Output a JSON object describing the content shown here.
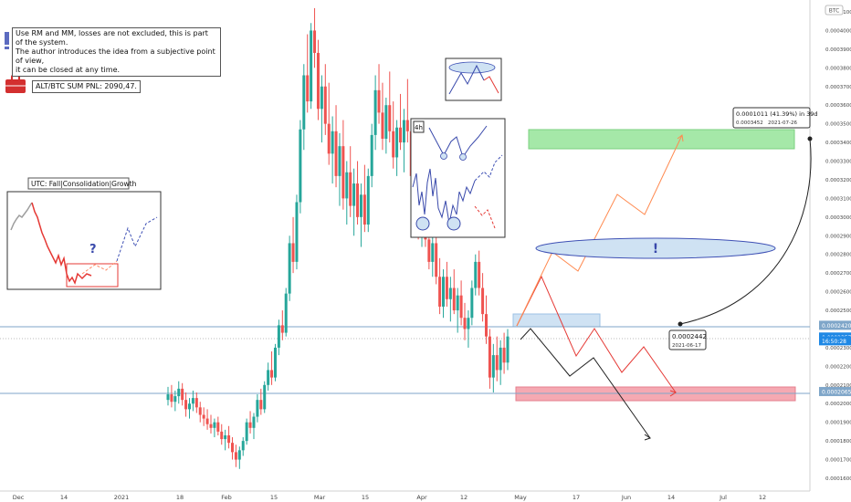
{
  "chart_data": {
    "type": "candlestick",
    "symbol_badge": "BTC",
    "y_ticks": [
      "0.0004100",
      "0.0004000",
      "0.0003900",
      "0.0003800",
      "0.0003700",
      "0.0003600",
      "0.0003500",
      "0.0003400",
      "0.0003300",
      "0.0003200",
      "0.0003100",
      "0.0003000",
      "0.0002900",
      "0.0002800",
      "0.0002700",
      "0.0002600",
      "0.0002500",
      "0.0002300",
      "0.0002200",
      "0.0002100",
      "0.0002000",
      "0.0001900",
      "0.0001800",
      "0.0001700",
      "0.0001600"
    ],
    "y_tick_values": [
      0.00041,
      0.0004,
      0.00039,
      0.00038,
      0.00037,
      0.00036,
      0.00035,
      0.00034,
      0.00033,
      0.00032,
      0.00031,
      0.0003,
      0.00029,
      0.00028,
      0.00027,
      0.00026,
      0.00025,
      0.00023,
      0.00022,
      0.00021,
      0.0002,
      0.00019,
      0.00018,
      0.00017,
      0.00016
    ],
    "x_ticks": [
      "Dec",
      "14",
      "2021",
      "18",
      "Feb",
      "15",
      "Mar",
      "15",
      "Apr",
      "12",
      "May",
      "17",
      "Jun",
      "14",
      "Jul",
      "12"
    ],
    "ylim": [
      0.000155,
      0.000415
    ],
    "price_labels": [
      {
        "text": "0.0002420",
        "value": 0.000242,
        "color": "#7fa6c9"
      },
      {
        "text": "0.0002357",
        "value": 0.0002357,
        "color": "#1e88e5"
      },
      {
        "text": "16:50:28",
        "value": 0.0002337,
        "color": "#1e88e5"
      },
      {
        "text": "0.0002065",
        "value": 0.0002065,
        "color": "#7fa6c9"
      }
    ],
    "horizontal_levels": [
      0.000242,
      0.0002065
    ],
    "candles": [
      [
        0.000202,
        0.000209,
        0.000199,
        0.000205
      ],
      [
        0.000205,
        0.00021,
        0.000198,
        0.000201
      ],
      [
        0.000201,
        0.000207,
        0.000196,
        0.000204
      ],
      [
        0.000204,
        0.000212,
        0.0002,
        0.000208
      ],
      [
        0.000208,
        0.000211,
        0.000199,
        0.000202
      ],
      [
        0.000202,
        0.000206,
        0.000193,
        0.000197
      ],
      [
        0.000197,
        0.000203,
        0.000192,
        0.0002
      ],
      [
        0.0002,
        0.000207,
        0.000196,
        0.000203
      ],
      [
        0.000203,
        0.000206,
        0.000195,
        0.000198
      ],
      [
        0.000198,
        0.000201,
        0.00019,
        0.000194
      ],
      [
        0.000194,
        0.000198,
        0.000188,
        0.000192
      ],
      [
        0.000192,
        0.000197,
        0.000186,
        0.000189
      ],
      [
        0.000189,
        0.000194,
        0.000184,
        0.000187
      ],
      [
        0.000187,
        0.000192,
        0.000182,
        0.00019
      ],
      [
        0.00019,
        0.000193,
        0.000183,
        0.000185
      ],
      [
        0.000185,
        0.000189,
        0.000178,
        0.000181
      ],
      [
        0.000181,
        0.000186,
        0.000175,
        0.000183
      ],
      [
        0.000183,
        0.000188,
        0.000176,
        0.000179
      ],
      [
        0.000179,
        0.000182,
        0.00017,
        0.000174
      ],
      [
        0.000174,
        0.000178,
        0.000166,
        0.00017
      ],
      [
        0.00017,
        0.000177,
        0.000165,
        0.000175
      ],
      [
        0.000175,
        0.000182,
        0.000172,
        0.00018
      ],
      [
        0.00018,
        0.000192,
        0.000178,
        0.00019
      ],
      [
        0.00019,
        0.000196,
        0.000184,
        0.000187
      ],
      [
        0.000187,
        0.000195,
        0.000181,
        0.000193
      ],
      [
        0.000193,
        0.000205,
        0.00019,
        0.000202
      ],
      [
        0.000202,
        0.000208,
        0.000194,
        0.000197
      ],
      [
        0.000197,
        0.000212,
        0.000195,
        0.00021
      ],
      [
        0.00021,
        0.000222,
        0.000207,
        0.000218
      ],
      [
        0.000218,
        0.000228,
        0.00021,
        0.000214
      ],
      [
        0.000214,
        0.000232,
        0.000212,
        0.00023
      ],
      [
        0.00023,
        0.000245,
        0.000226,
        0.000242
      ],
      [
        0.000242,
        0.00025,
        0.000234,
        0.000238
      ],
      [
        0.000238,
        0.000262,
        0.000236,
        0.000259
      ],
      [
        0.000259,
        0.00029,
        0.000255,
        0.000286
      ],
      [
        0.000286,
        0.0003,
        0.00027,
        0.000276
      ],
      [
        0.000276,
        0.000312,
        0.000272,
        0.000308
      ],
      [
        0.000308,
        0.000352,
        0.000302,
        0.000347
      ],
      [
        0.000347,
        0.000382,
        0.000336,
        0.000376
      ],
      [
        0.000376,
        0.000398,
        0.000356,
        0.000362
      ],
      [
        0.000362,
        0.000404,
        0.000358,
        0.0004
      ],
      [
        0.0004,
        0.000412,
        0.00038,
        0.000388
      ],
      [
        0.000388,
        0.000395,
        0.000352,
        0.000358
      ],
      [
        0.000358,
        0.000376,
        0.00034,
        0.00037
      ],
      [
        0.00037,
        0.000382,
        0.000344,
        0.00035
      ],
      [
        0.00035,
        0.000372,
        0.000328,
        0.000334
      ],
      [
        0.000334,
        0.000354,
        0.000318,
        0.000346
      ],
      [
        0.000346,
        0.00036,
        0.000316,
        0.000322
      ],
      [
        0.000322,
        0.000345,
        0.000306,
        0.000338
      ],
      [
        0.000338,
        0.000352,
        0.000304,
        0.00031
      ],
      [
        0.00031,
        0.00033,
        0.000296,
        0.000324
      ],
      [
        0.000324,
        0.000338,
        0.0003,
        0.000306
      ],
      [
        0.000306,
        0.000326,
        0.00029,
        0.000318
      ],
      [
        0.000318,
        0.00033,
        0.000296,
        0.0003
      ],
      [
        0.0003,
        0.000318,
        0.000284,
        0.000312
      ],
      [
        0.000312,
        0.000328,
        0.000292,
        0.000296
      ],
      [
        0.000296,
        0.000326,
        0.000292,
        0.000322
      ],
      [
        0.000322,
        0.00035,
        0.000316,
        0.000344
      ],
      [
        0.000344,
        0.000376,
        0.000336,
        0.000368
      ],
      [
        0.000368,
        0.000382,
        0.00035,
        0.000356
      ],
      [
        0.000356,
        0.000372,
        0.000336,
        0.000342
      ],
      [
        0.000342,
        0.000364,
        0.000334,
        0.00036
      ],
      [
        0.00036,
        0.000378,
        0.00034,
        0.000346
      ],
      [
        0.000346,
        0.000362,
        0.000326,
        0.000332
      ],
      [
        0.000332,
        0.000352,
        0.000322,
        0.000348
      ],
      [
        0.000348,
        0.000366,
        0.000336,
        0.00034
      ],
      [
        0.00034,
        0.000358,
        0.000324,
        0.000352
      ],
      [
        0.000352,
        0.000374,
        0.00034,
        0.000346
      ],
      [
        0.000346,
        0.000352,
        0.000318,
        0.000322
      ],
      [
        0.000322,
        0.000332,
        0.0003,
        0.000306
      ],
      [
        0.000306,
        0.000316,
        0.000288,
        0.000294
      ],
      [
        0.000294,
        0.00031,
        0.000284,
        0.000304
      ],
      [
        0.000304,
        0.000314,
        0.000284,
        0.000288
      ],
      [
        0.000288,
        0.000298,
        0.000272,
        0.000276
      ],
      [
        0.000276,
        0.00029,
        0.000268,
        0.000286
      ],
      [
        0.000286,
        0.000294,
        0.000264,
        0.000268
      ],
      [
        0.000268,
        0.000278,
        0.000248,
        0.000252
      ],
      [
        0.000252,
        0.000272,
        0.000246,
        0.000268
      ],
      [
        0.000268,
        0.000276,
        0.000252,
        0.000256
      ],
      [
        0.000256,
        0.000268,
        0.000244,
        0.000262
      ],
      [
        0.000262,
        0.000272,
        0.000248,
        0.00025
      ],
      [
        0.00025,
        0.000262,
        0.000238,
        0.000258
      ],
      [
        0.000258,
        0.000266,
        0.000242,
        0.000246
      ],
      [
        0.000246,
        0.000254,
        0.000234,
        0.00024
      ],
      [
        0.00024,
        0.00025,
        0.00023,
        0.000246
      ],
      [
        0.000246,
        0.000266,
        0.000242,
        0.000262
      ],
      [
        0.000262,
        0.00028,
        0.000258,
        0.000276
      ],
      [
        0.000276,
        0.000282,
        0.000258,
        0.000262
      ],
      [
        0.000262,
        0.00027,
        0.000244,
        0.000248
      ],
      [
        0.000248,
        0.000258,
        0.000232,
        0.000236
      ],
      [
        0.000236,
        0.00024,
        0.000208,
        0.000214
      ],
      [
        0.000214,
        0.000232,
        0.000206,
        0.000226
      ],
      [
        0.000226,
        0.000236,
        0.000212,
        0.000218
      ],
      [
        0.000218,
        0.000234,
        0.00021,
        0.00023
      ],
      [
        0.00023,
        0.000238,
        0.000216,
        0.000222
      ],
      [
        0.000222,
        0.00024,
        0.000218,
        0.000236
      ]
    ]
  },
  "notes": {
    "disclaimer": "Use RM and MM, losses are not excluded, this is part of the system.\nThe author introduces the idea from a subjective point of view,\nit can be closed at any time.",
    "pnl": "ALT/BTC SUM PNL: 2090,47.",
    "utc": "UTC: Fall|Consolidation|Growth",
    "question_mark": "?",
    "timeframe": "4h",
    "exclamation": "!",
    "measure_top": "0.0001011 (41.39%) in 39d",
    "measure_sub_left": "0.0003452",
    "measure_sub_right": "2021-07-26",
    "start_price": "0.0002442",
    "start_date": "2021-06-17"
  },
  "colors": {
    "up": "#26a69a",
    "down": "#ef5350",
    "green_zone": "#a5e8a8",
    "red_zone": "#f5a9b2",
    "blue_zone": "#cfe2f3",
    "ellipse": "#cfe2f3",
    "accent_blue": "#3949ab",
    "pnl_icon": "#d32f2f"
  }
}
